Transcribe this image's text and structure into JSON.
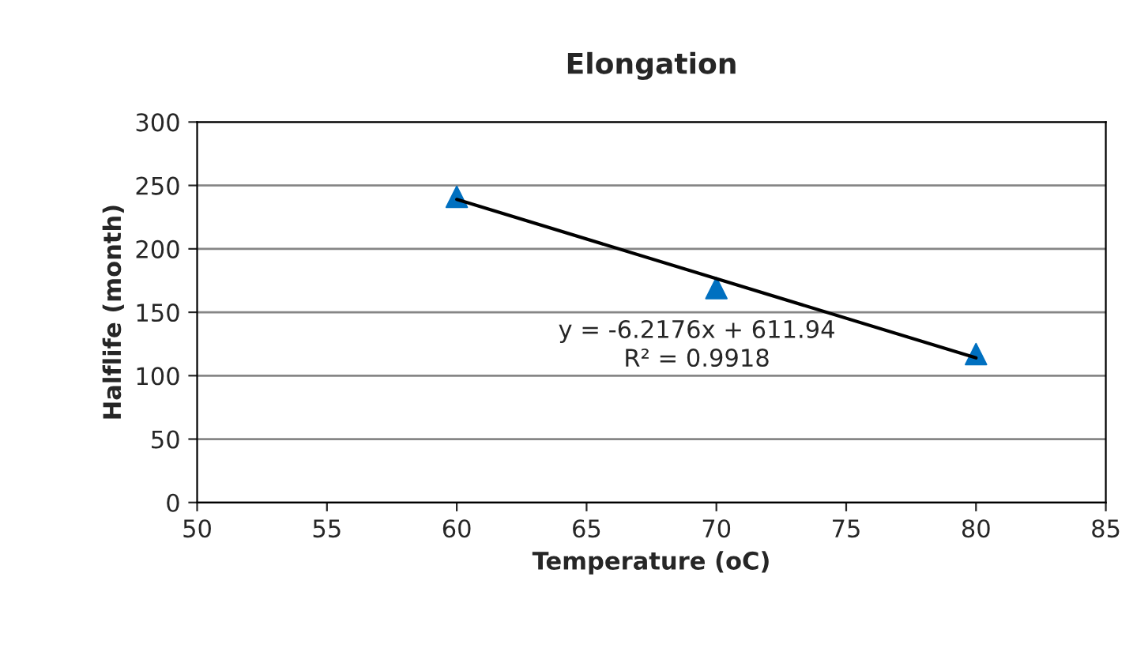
{
  "chart_data": {
    "type": "scatter",
    "title": "Elongation",
    "xlabel": "Temperature (oC)",
    "ylabel": "Halflife (month)",
    "series": [
      {
        "color": "#0070c0",
        "x": [
          60,
          70,
          80
        ],
        "values": [
          241,
          169,
          117
        ],
        "marker": "triangle"
      },
      {
        "type": "line",
        "color": "#000000",
        "x": [
          60,
          80
        ],
        "values": [
          239,
          114
        ],
        "marker": "none",
        "line_style": "solid"
      }
    ],
    "annotations": [
      "y = -6.2176x + 611.94",
      "R² = 0.9918"
    ],
    "xlim": [
      50,
      85
    ],
    "xticks": [
      50,
      55,
      60,
      65,
      70,
      75,
      80,
      85
    ],
    "ylim": [
      0,
      300
    ],
    "yticks": [
      0,
      50,
      100,
      150,
      200,
      250,
      300
    ],
    "grid": "y",
    "legend": false
  }
}
